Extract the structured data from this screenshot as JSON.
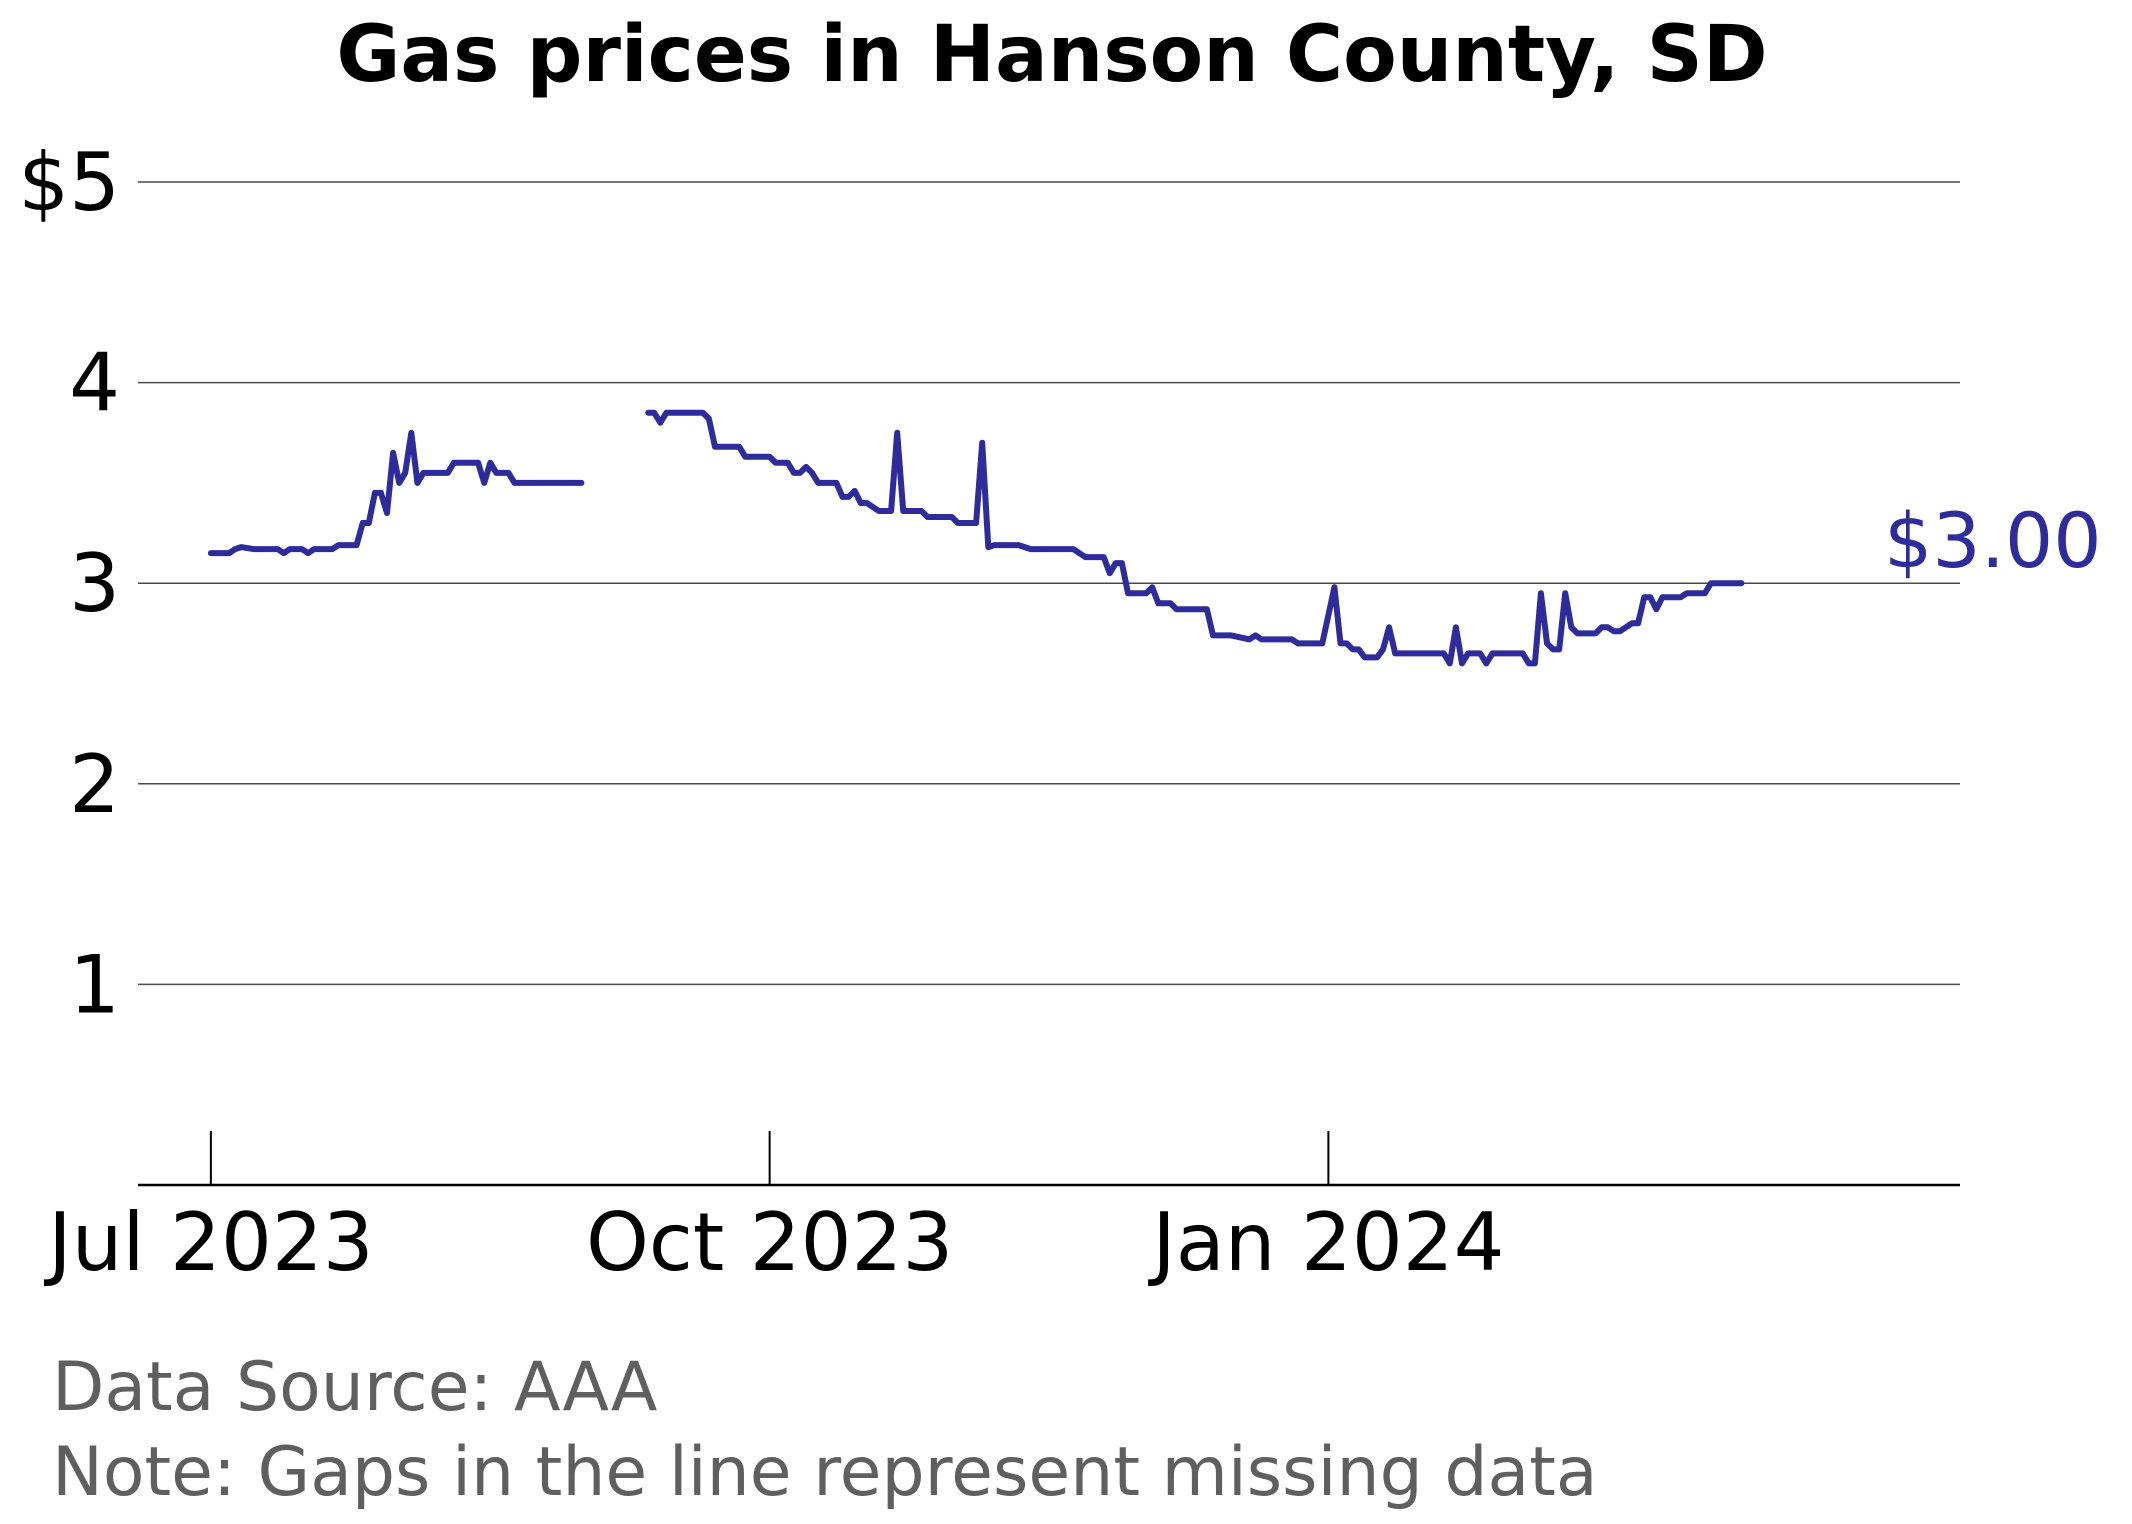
{
  "chart_data": {
    "type": "line",
    "title": "Gas prices in Hanson County, SD",
    "xlabel": "",
    "ylabel": "",
    "x_ticks": [
      {
        "date": "2023-07-01",
        "label": "Jul 2023"
      },
      {
        "date": "2023-10-01",
        "label": "Oct 2023"
      },
      {
        "date": "2024-01-01",
        "label": "Jan 2024"
      }
    ],
    "xlim": [
      "2023-06-19",
      "2024-04-14"
    ],
    "y_ticks": [
      {
        "value": 1,
        "label": "1"
      },
      {
        "value": 2,
        "label": "2"
      },
      {
        "value": 3,
        "label": "3"
      },
      {
        "value": 4,
        "label": "4"
      },
      {
        "value": 5,
        "label": "$5"
      }
    ],
    "ylim": [
      0,
      5.1
    ],
    "grid": "horizontal",
    "line_color": "#2e2c9c",
    "end_label": "$3.00",
    "series": [
      {
        "values": [
          [
            "2023-07-01",
            3.15
          ],
          [
            "2023-07-04",
            3.15
          ],
          [
            "2023-07-05",
            3.17
          ],
          [
            "2023-07-06",
            3.18
          ],
          [
            "2023-07-08",
            3.17
          ],
          [
            "2023-07-12",
            3.17
          ],
          [
            "2023-07-13",
            3.15
          ],
          [
            "2023-07-14",
            3.17
          ],
          [
            "2023-07-16",
            3.17
          ],
          [
            "2023-07-17",
            3.15
          ],
          [
            "2023-07-18",
            3.17
          ],
          [
            "2023-07-21",
            3.17
          ],
          [
            "2023-07-22",
            3.19
          ],
          [
            "2023-07-25",
            3.19
          ],
          [
            "2023-07-26",
            3.3
          ],
          [
            "2023-07-27",
            3.3
          ],
          [
            "2023-07-28",
            3.45
          ],
          [
            "2023-07-29",
            3.45
          ],
          [
            "2023-07-30",
            3.35
          ],
          [
            "2023-07-31",
            3.65
          ],
          [
            "2023-08-01",
            3.5
          ],
          [
            "2023-08-02",
            3.55
          ],
          [
            "2023-08-03",
            3.75
          ],
          [
            "2023-08-04",
            3.5
          ],
          [
            "2023-08-05",
            3.55
          ],
          [
            "2023-08-09",
            3.55
          ],
          [
            "2023-08-10",
            3.6
          ],
          [
            "2023-08-14",
            3.6
          ],
          [
            "2023-08-15",
            3.5
          ],
          [
            "2023-08-16",
            3.6
          ],
          [
            "2023-08-17",
            3.55
          ],
          [
            "2023-08-19",
            3.55
          ],
          [
            "2023-08-20",
            3.5
          ],
          [
            "2023-08-31",
            3.5
          ]
        ]
      },
      {
        "values": [
          [
            "2023-09-11",
            3.85
          ],
          [
            "2023-09-12",
            3.85
          ],
          [
            "2023-09-13",
            3.8
          ],
          [
            "2023-09-14",
            3.85
          ],
          [
            "2023-09-20",
            3.85
          ],
          [
            "2023-09-21",
            3.82
          ],
          [
            "2023-09-22",
            3.68
          ],
          [
            "2023-09-26",
            3.68
          ],
          [
            "2023-09-27",
            3.63
          ],
          [
            "2023-10-01",
            3.63
          ],
          [
            "2023-10-02",
            3.6
          ],
          [
            "2023-10-04",
            3.6
          ],
          [
            "2023-10-05",
            3.55
          ],
          [
            "2023-10-06",
            3.55
          ],
          [
            "2023-10-07",
            3.58
          ],
          [
            "2023-10-08",
            3.55
          ],
          [
            "2023-10-09",
            3.5
          ],
          [
            "2023-10-12",
            3.5
          ],
          [
            "2023-10-13",
            3.43
          ],
          [
            "2023-10-14",
            3.43
          ],
          [
            "2023-10-15",
            3.46
          ],
          [
            "2023-10-16",
            3.4
          ],
          [
            "2023-10-17",
            3.4
          ],
          [
            "2023-10-19",
            3.36
          ],
          [
            "2023-10-21",
            3.36
          ],
          [
            "2023-10-22",
            3.75
          ],
          [
            "2023-10-23",
            3.36
          ],
          [
            "2023-10-26",
            3.36
          ],
          [
            "2023-10-27",
            3.33
          ],
          [
            "2023-10-31",
            3.33
          ],
          [
            "2023-11-01",
            3.3
          ],
          [
            "2023-11-04",
            3.3
          ],
          [
            "2023-11-05",
            3.7
          ],
          [
            "2023-11-06",
            3.18
          ],
          [
            "2023-11-07",
            3.19
          ],
          [
            "2023-11-11",
            3.19
          ],
          [
            "2023-11-13",
            3.17
          ],
          [
            "2023-11-20",
            3.17
          ],
          [
            "2023-11-22",
            3.13
          ],
          [
            "2023-11-25",
            3.13
          ],
          [
            "2023-11-26",
            3.05
          ],
          [
            "2023-11-27",
            3.1
          ],
          [
            "2023-11-28",
            3.1
          ],
          [
            "2023-11-29",
            2.95
          ],
          [
            "2023-12-02",
            2.95
          ],
          [
            "2023-12-03",
            2.98
          ],
          [
            "2023-12-04",
            2.9
          ],
          [
            "2023-12-06",
            2.9
          ],
          [
            "2023-12-07",
            2.87
          ],
          [
            "2023-12-12",
            2.87
          ],
          [
            "2023-12-13",
            2.74
          ],
          [
            "2023-12-16",
            2.74
          ],
          [
            "2023-12-19",
            2.72
          ],
          [
            "2023-12-20",
            2.74
          ],
          [
            "2023-12-21",
            2.72
          ],
          [
            "2023-12-26",
            2.72
          ],
          [
            "2023-12-27",
            2.7
          ],
          [
            "2023-12-31",
            2.7
          ],
          [
            "2024-01-02",
            2.98
          ],
          [
            "2024-01-03",
            2.7
          ],
          [
            "2024-01-04",
            2.7
          ],
          [
            "2024-01-05",
            2.67
          ],
          [
            "2024-01-06",
            2.67
          ],
          [
            "2024-01-07",
            2.63
          ],
          [
            "2024-01-09",
            2.63
          ],
          [
            "2024-01-10",
            2.67
          ],
          [
            "2024-01-11",
            2.78
          ],
          [
            "2024-01-12",
            2.65
          ],
          [
            "2024-01-20",
            2.65
          ],
          [
            "2024-01-21",
            2.6
          ],
          [
            "2024-01-22",
            2.78
          ],
          [
            "2024-01-23",
            2.6
          ],
          [
            "2024-01-24",
            2.65
          ],
          [
            "2024-01-26",
            2.65
          ],
          [
            "2024-01-27",
            2.6
          ],
          [
            "2024-01-28",
            2.65
          ],
          [
            "2024-02-02",
            2.65
          ],
          [
            "2024-02-03",
            2.6
          ],
          [
            "2024-02-04",
            2.6
          ],
          [
            "2024-02-05",
            2.95
          ],
          [
            "2024-02-06",
            2.7
          ],
          [
            "2024-02-07",
            2.67
          ],
          [
            "2024-02-08",
            2.67
          ],
          [
            "2024-02-09",
            2.95
          ],
          [
            "2024-02-10",
            2.78
          ],
          [
            "2024-02-11",
            2.75
          ],
          [
            "2024-02-14",
            2.75
          ],
          [
            "2024-02-15",
            2.78
          ],
          [
            "2024-02-16",
            2.78
          ],
          [
            "2024-02-17",
            2.76
          ],
          [
            "2024-02-18",
            2.76
          ],
          [
            "2024-02-20",
            2.8
          ],
          [
            "2024-02-21",
            2.8
          ],
          [
            "2024-02-22",
            2.93
          ],
          [
            "2024-02-23",
            2.93
          ],
          [
            "2024-02-24",
            2.87
          ],
          [
            "2024-02-25",
            2.93
          ],
          [
            "2024-02-28",
            2.93
          ],
          [
            "2024-02-29",
            2.95
          ],
          [
            "2024-03-03",
            2.95
          ],
          [
            "2024-03-04",
            3.0
          ],
          [
            "2024-03-09",
            3.0
          ]
        ]
      }
    ]
  },
  "footer": {
    "source": "Data Source: AAA",
    "note": "Note: Gaps in the line represent missing data"
  }
}
